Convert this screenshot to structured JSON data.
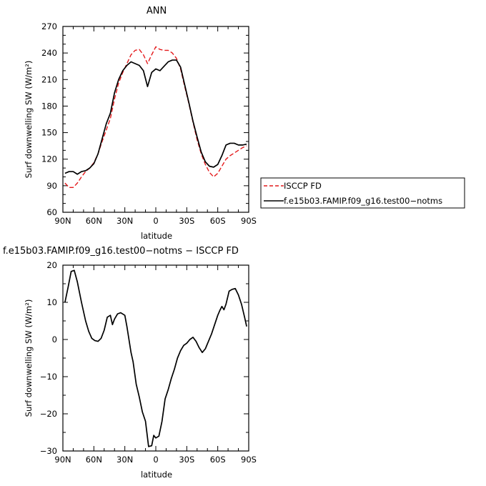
{
  "chart_data": [
    {
      "type": "line",
      "title": "ANN",
      "xlabel": "latitude",
      "ylabel": "Surf downwelling SW (W/m²)",
      "xlim": [
        90,
        -90
      ],
      "ylim": [
        60,
        270
      ],
      "x_ticks": [
        90,
        60,
        30,
        0,
        -30,
        -60,
        -90
      ],
      "x_tick_labels": [
        "90N",
        "60N",
        "30N",
        "0",
        "30S",
        "60S",
        "90S"
      ],
      "y_ticks": [
        60,
        90,
        120,
        150,
        180,
        210,
        240,
        270
      ],
      "y_tick_labels": [
        "60",
        "90",
        "120",
        "150",
        "180",
        "210",
        "240",
        "270"
      ],
      "legend_position": "right",
      "series": [
        {
          "name": "ISCCP FD",
          "color": "#e41a1c",
          "dash": "dashed",
          "x": [
            88,
            84,
            80,
            76,
            72,
            68,
            64,
            60,
            56,
            52,
            48,
            44,
            40,
            36,
            32,
            28,
            24,
            20,
            16,
            12,
            8,
            4,
            0,
            -4,
            -8,
            -12,
            -16,
            -20,
            -24,
            -28,
            -32,
            -36,
            -40,
            -44,
            -48,
            -52,
            -56,
            -60,
            -64,
            -68,
            -72,
            -76,
            -80,
            -84,
            -88
          ],
          "y": [
            93,
            88,
            88,
            93,
            100,
            106,
            110,
            116,
            126,
            140,
            153,
            166,
            188,
            206,
            218,
            228,
            238,
            243,
            244,
            238,
            228,
            238,
            247,
            244,
            243,
            243,
            240,
            234,
            222,
            202,
            183,
            162,
            142,
            126,
            114,
            105,
            100,
            104,
            112,
            120,
            124,
            127,
            130,
            133,
            135
          ]
        },
        {
          "name": "f.e15b03.FAMIP.f09_g16.test00−notms",
          "color": "#000000",
          "dash": "solid",
          "x": [
            88,
            84,
            80,
            76,
            72,
            68,
            64,
            60,
            56,
            52,
            48,
            44,
            40,
            36,
            32,
            28,
            24,
            20,
            16,
            12,
            8,
            4,
            0,
            -4,
            -8,
            -12,
            -16,
            -20,
            -24,
            -28,
            -32,
            -36,
            -40,
            -44,
            -48,
            -52,
            -56,
            -60,
            -64,
            -68,
            -72,
            -76,
            -80,
            -84,
            -88
          ],
          "y": [
            104,
            106,
            106,
            103,
            106,
            107,
            110,
            115,
            126,
            143,
            160,
            172,
            195,
            210,
            220,
            226,
            230,
            228,
            226,
            220,
            202,
            218,
            222,
            220,
            225,
            230,
            232,
            232,
            224,
            204,
            184,
            163,
            145,
            128,
            117,
            112,
            111,
            114,
            124,
            136,
            138,
            138,
            136,
            136,
            137
          ]
        }
      ]
    },
    {
      "type": "line",
      "title": "f.e15b03.FAMIP.f09_g16.test00−notms − ISCCP FD",
      "xlabel": "latitude",
      "ylabel": "Surf downwelling SW (W/m²)",
      "xlim": [
        90,
        -90
      ],
      "ylim": [
        -30,
        20
      ],
      "x_ticks": [
        90,
        60,
        30,
        0,
        -30,
        -60,
        -90
      ],
      "x_tick_labels": [
        "90N",
        "60N",
        "30N",
        "0",
        "30S",
        "60S",
        "90S"
      ],
      "y_ticks": [
        -30,
        -20,
        -10,
        0,
        10,
        20
      ],
      "y_tick_labels": [
        "−30",
        "−20",
        "−10",
        "0",
        "10",
        "20"
      ],
      "series": [
        {
          "color": "#000000",
          "dash": "solid",
          "x": [
            88,
            85,
            82,
            79,
            76,
            72,
            68,
            65,
            62,
            59,
            56,
            53,
            50,
            47,
            44,
            42,
            40,
            37,
            34,
            30,
            28,
            26,
            24,
            22,
            19,
            16,
            13,
            10,
            7,
            4,
            2,
            0,
            -3,
            -6,
            -9,
            -12,
            -15,
            -18,
            -21,
            -24,
            -27,
            -30,
            -33,
            -36,
            -39,
            -42,
            -45,
            -48,
            -51,
            -54,
            -57,
            -60,
            -62,
            -64,
            -66,
            -68,
            -71,
            -74,
            -77,
            -80,
            -83,
            -86,
            -88
          ],
          "y": [
            10,
            14,
            18.3,
            18.6,
            15.5,
            10,
            5,
            2.2,
            0.3,
            -0.3,
            -0.5,
            0.3,
            2.5,
            6,
            6.5,
            4,
            5.5,
            6.9,
            7.2,
            6.5,
            3.5,
            0,
            -3.5,
            -6,
            -12,
            -15.5,
            -19.5,
            -22,
            -28.8,
            -28.6,
            -25.8,
            -26.5,
            -26,
            -22,
            -16,
            -13.5,
            -10.5,
            -8,
            -5,
            -3,
            -1.6,
            -1,
            0,
            0.6,
            -0.5,
            -2.2,
            -3.5,
            -2.5,
            -0.5,
            1.5,
            4,
            6.5,
            7.8,
            8.9,
            8,
            9.5,
            13,
            13.5,
            13.7,
            12,
            9.5,
            6,
            3.5
          ]
        }
      ]
    }
  ]
}
